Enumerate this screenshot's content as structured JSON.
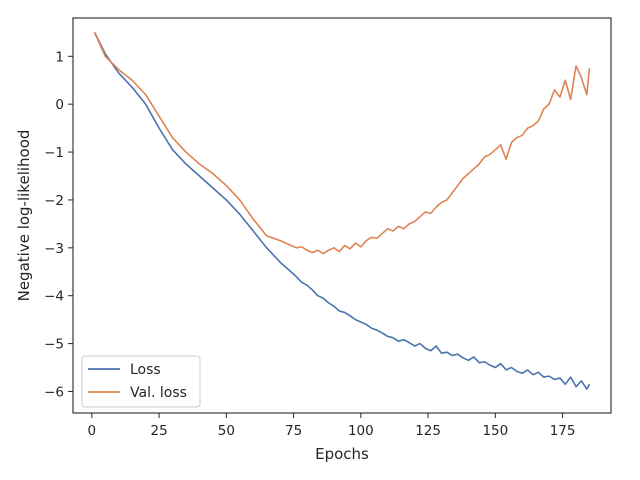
{
  "chart_data": {
    "type": "line",
    "title": "",
    "xlabel": "Epochs",
    "ylabel": "Negative log-likelihood",
    "xlim": [
      -7,
      193
    ],
    "ylim": [
      -6.45,
      1.8
    ],
    "xticks": [
      0,
      25,
      50,
      75,
      100,
      125,
      150,
      175
    ],
    "yticks": [
      -6,
      -5,
      -4,
      -3,
      -2,
      -1,
      0,
      1
    ],
    "grid": false,
    "legend_position": "lower-left",
    "series": [
      {
        "name": "Loss",
        "color": "#4c72b0",
        "x": [
          1,
          5,
          10,
          15,
          20,
          25,
          30,
          35,
          40,
          45,
          50,
          55,
          60,
          65,
          70,
          72,
          74,
          76,
          78,
          80,
          82,
          84,
          86,
          88,
          90,
          92,
          94,
          96,
          98,
          100,
          102,
          104,
          106,
          108,
          110,
          112,
          114,
          116,
          118,
          120,
          122,
          124,
          126,
          128,
          130,
          132,
          134,
          136,
          138,
          140,
          142,
          144,
          146,
          148,
          150,
          152,
          154,
          156,
          158,
          160,
          162,
          164,
          166,
          168,
          170,
          172,
          174,
          176,
          178,
          180,
          182,
          184,
          185
        ],
        "y": [
          1.5,
          1.05,
          0.65,
          0.35,
          0.0,
          -0.5,
          -0.95,
          -1.25,
          -1.5,
          -1.75,
          -2.0,
          -2.3,
          -2.65,
          -3.0,
          -3.3,
          -3.4,
          -3.5,
          -3.6,
          -3.72,
          -3.78,
          -3.88,
          -4.0,
          -4.05,
          -4.15,
          -4.22,
          -4.32,
          -4.35,
          -4.42,
          -4.5,
          -4.55,
          -4.6,
          -4.68,
          -4.72,
          -4.78,
          -4.85,
          -4.88,
          -4.95,
          -4.92,
          -4.98,
          -5.05,
          -5.0,
          -5.1,
          -5.15,
          -5.05,
          -5.2,
          -5.18,
          -5.25,
          -5.22,
          -5.3,
          -5.35,
          -5.28,
          -5.4,
          -5.38,
          -5.45,
          -5.5,
          -5.42,
          -5.55,
          -5.5,
          -5.58,
          -5.62,
          -5.55,
          -5.65,
          -5.6,
          -5.7,
          -5.68,
          -5.75,
          -5.72,
          -5.85,
          -5.7,
          -5.9,
          -5.78,
          -5.95,
          -5.85
        ]
      },
      {
        "name": "Val. loss",
        "color": "#dd8452",
        "x": [
          1,
          5,
          10,
          15,
          20,
          25,
          30,
          35,
          40,
          45,
          50,
          55,
          60,
          65,
          70,
          72,
          74,
          76,
          78,
          80,
          82,
          84,
          86,
          88,
          90,
          92,
          94,
          96,
          98,
          100,
          102,
          104,
          106,
          108,
          110,
          112,
          114,
          116,
          118,
          120,
          122,
          124,
          126,
          128,
          130,
          132,
          134,
          136,
          138,
          140,
          142,
          144,
          146,
          148,
          150,
          152,
          154,
          156,
          158,
          160,
          162,
          164,
          166,
          168,
          170,
          172,
          174,
          176,
          178,
          180,
          182,
          184,
          185
        ],
        "y": [
          1.5,
          1.0,
          0.72,
          0.5,
          0.2,
          -0.25,
          -0.7,
          -1.0,
          -1.25,
          -1.45,
          -1.7,
          -2.0,
          -2.4,
          -2.75,
          -2.85,
          -2.9,
          -2.95,
          -3.0,
          -2.98,
          -3.05,
          -3.1,
          -3.05,
          -3.12,
          -3.05,
          -3.0,
          -3.08,
          -2.95,
          -3.02,
          -2.9,
          -2.98,
          -2.85,
          -2.78,
          -2.8,
          -2.7,
          -2.6,
          -2.65,
          -2.55,
          -2.6,
          -2.5,
          -2.45,
          -2.35,
          -2.25,
          -2.28,
          -2.15,
          -2.05,
          -2.0,
          -1.85,
          -1.7,
          -1.55,
          -1.45,
          -1.35,
          -1.25,
          -1.1,
          -1.05,
          -0.95,
          -0.85,
          -1.15,
          -0.8,
          -0.7,
          -0.65,
          -0.5,
          -0.45,
          -0.35,
          -0.1,
          0.0,
          0.3,
          0.15,
          0.5,
          0.1,
          0.8,
          0.55,
          0.2,
          0.75
        ]
      }
    ]
  }
}
